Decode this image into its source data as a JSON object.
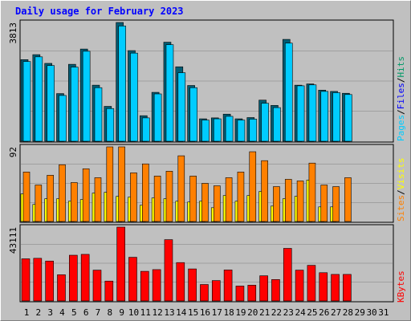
{
  "chart_data": {
    "type": "bar",
    "title": "Daily usage for February 2023",
    "days": [
      "1",
      "2",
      "3",
      "4",
      "5",
      "6",
      "7",
      "8",
      "9",
      "10",
      "11",
      "12",
      "13",
      "14",
      "15",
      "16",
      "17",
      "18",
      "19",
      "20",
      "21",
      "22",
      "23",
      "24",
      "25",
      "26",
      "27",
      "28",
      "29",
      "30",
      "31"
    ],
    "weekend_days": [
      4,
      5,
      11,
      12,
      18,
      19,
      25,
      26
    ],
    "panels": [
      {
        "id": "hits",
        "max_label": "3813",
        "ymax": 3813,
        "series": [
          {
            "name": "Hits",
            "color": "#009966",
            "values": [
              2620,
              2780,
              2500,
              1530,
              2470,
              2960,
              1800,
              1120,
              3813,
              2910,
              820,
              1570,
              3180,
              2390,
              1790,
              720,
              750,
              870,
              720,
              760,
              1320,
              1150,
              3270,
              1800,
              1840,
              1640,
              1600,
              1540,
              null,
              null,
              null
            ]
          },
          {
            "name": "Files",
            "color": "#0000ff",
            "values": []
          },
          {
            "name": "Pages",
            "color": "#00ccff",
            "values": [
              2560,
              2710,
              2430,
              1470,
              2380,
              2890,
              1720,
              1050,
              3700,
              2830,
              750,
              1520,
              3100,
              2200,
              1720,
              680,
              720,
              800,
              680,
              710,
              1220,
              1080,
              3150,
              1780,
              1810,
              1600,
              1560,
              1500,
              null,
              null,
              null
            ]
          }
        ],
        "label_parts": [
          "Pages",
          "/",
          "Files",
          "/",
          "Hits"
        ]
      },
      {
        "id": "visits",
        "max_label": "92",
        "ymax": 92,
        "series": [
          {
            "name": "Sites",
            "color": "#ff8000",
            "values": [
              61,
              45,
              57,
              70,
              48,
              65,
              54,
              92,
              92,
              60,
              71,
              56,
              62,
              81,
              56,
              47,
              44,
              54,
              61,
              86,
              75,
              43,
              52,
              50,
              72,
              45,
              43,
              54,
              null,
              null,
              null
            ]
          },
          {
            "name": "Visits",
            "color": "#ffff00",
            "values": [
              34,
              21,
              28,
              28,
              25,
              27,
              35,
              36,
              31,
              30,
              20,
              29,
              28,
              25,
              24,
              25,
              17,
              32,
              25,
              32,
              37,
              19,
              28,
              31,
              51,
              18,
              18,
              null,
              null,
              null,
              null
            ]
          }
        ],
        "label_parts": [
          "Sites",
          "/",
          "Visits"
        ]
      },
      {
        "id": "kbytes",
        "max_label": "43111",
        "ymax": 43111,
        "series": [
          {
            "name": "KBytes",
            "color": "#ff0000",
            "values": [
              24600,
              24900,
              23300,
              15300,
              26700,
              27200,
              18000,
              11600,
              43111,
              25500,
              17300,
              18300,
              35800,
              22400,
              18700,
              9600,
              11900,
              18100,
              8700,
              9200,
              14700,
              12500,
              30700,
              18000,
              20800,
              16500,
              15500,
              15500,
              null,
              null,
              null
            ]
          }
        ],
        "label_parts": [
          "KBytes"
        ]
      }
    ],
    "colors": {
      "background": "#c0c0c0",
      "plot": "#c0c0c0",
      "grid": "#808080",
      "title": "#0000ff"
    }
  }
}
